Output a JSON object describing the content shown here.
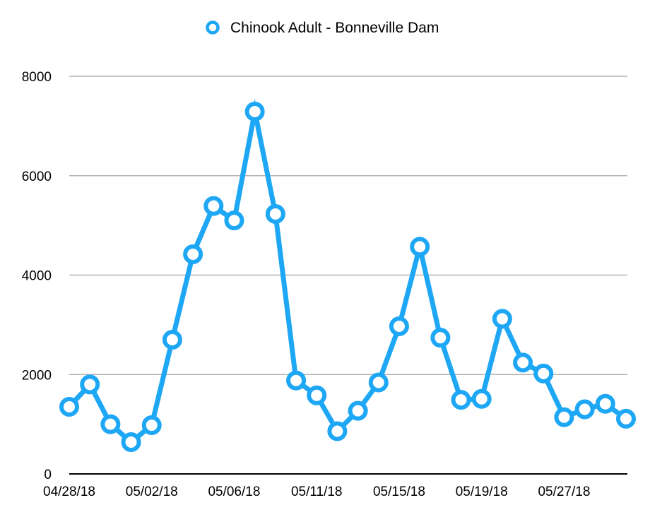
{
  "chart_data": {
    "type": "line",
    "legend": {
      "position": "top-center"
    },
    "series": [
      {
        "name": "Chinook Adult - Bonneville Dam",
        "color": "#1ea7f5",
        "values": [
          1350,
          1800,
          1000,
          640,
          980,
          2700,
          4420,
          5390,
          5100,
          7290,
          5230,
          1880,
          1580,
          860,
          1270,
          1840,
          2970,
          4570,
          2740,
          1490,
          1510,
          3120,
          2240,
          2020,
          1140,
          1300,
          1410,
          1110
        ]
      }
    ],
    "x_tick_labels": [
      {
        "index": 0,
        "label": "04/28/18"
      },
      {
        "index": 4,
        "label": "05/02/18"
      },
      {
        "index": 8,
        "label": "05/06/18"
      },
      {
        "index": 12,
        "label": "05/11/18"
      },
      {
        "index": 16,
        "label": "05/15/18"
      },
      {
        "index": 20,
        "label": "05/19/18"
      },
      {
        "index": 24,
        "label": "05/27/18"
      }
    ],
    "y_ticks": [
      0,
      2000,
      4000,
      6000,
      8000
    ],
    "ylim": [
      0,
      8000
    ],
    "grid": true
  }
}
